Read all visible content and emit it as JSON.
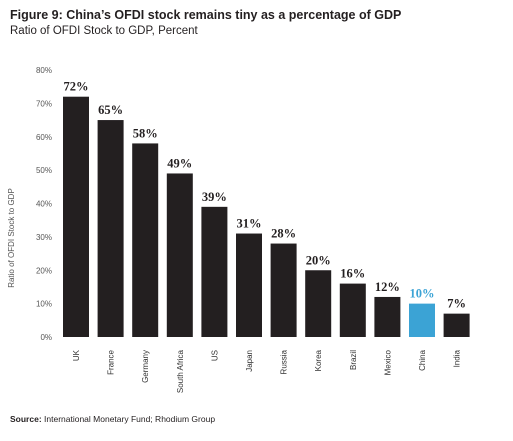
{
  "figure": {
    "title": "Figure 9: China’s OFDI stock remains tiny as a percentage of GDP",
    "subtitle": "Ratio of OFDI Stock to GDP, Percent"
  },
  "source": {
    "label": "Source:",
    "text": " International Monetary Fund; Rhodium Group"
  },
  "colors": {
    "bar": "#231f20",
    "highlight": "#3ba3d5",
    "axis_text": "#555555"
  },
  "chart_data": {
    "type": "bar",
    "categories": [
      "UK",
      "France",
      "Germany",
      "South Africa",
      "US",
      "Japan",
      "Russia",
      "Korea",
      "Brazil",
      "Mexico",
      "China",
      "India"
    ],
    "values": [
      72,
      65,
      58,
      49,
      39,
      31,
      28,
      20,
      16,
      12,
      10,
      7
    ],
    "data_labels": [
      "72%",
      "65%",
      "58%",
      "49%",
      "39%",
      "31%",
      "28%",
      "20%",
      "16%",
      "12%",
      "10%",
      "7%"
    ],
    "highlight_category": "China",
    "ylabel": "Ratio of OFDI Stock to GDP",
    "xlabel": "",
    "ylim": [
      0,
      80
    ],
    "yticks": [
      0,
      10,
      20,
      30,
      40,
      50,
      60,
      70,
      80
    ],
    "ytick_labels": [
      "0%",
      "10%",
      "20%",
      "30%",
      "40%",
      "50%",
      "60%",
      "70%",
      "80%"
    ],
    "grid": false,
    "legend": "none"
  }
}
